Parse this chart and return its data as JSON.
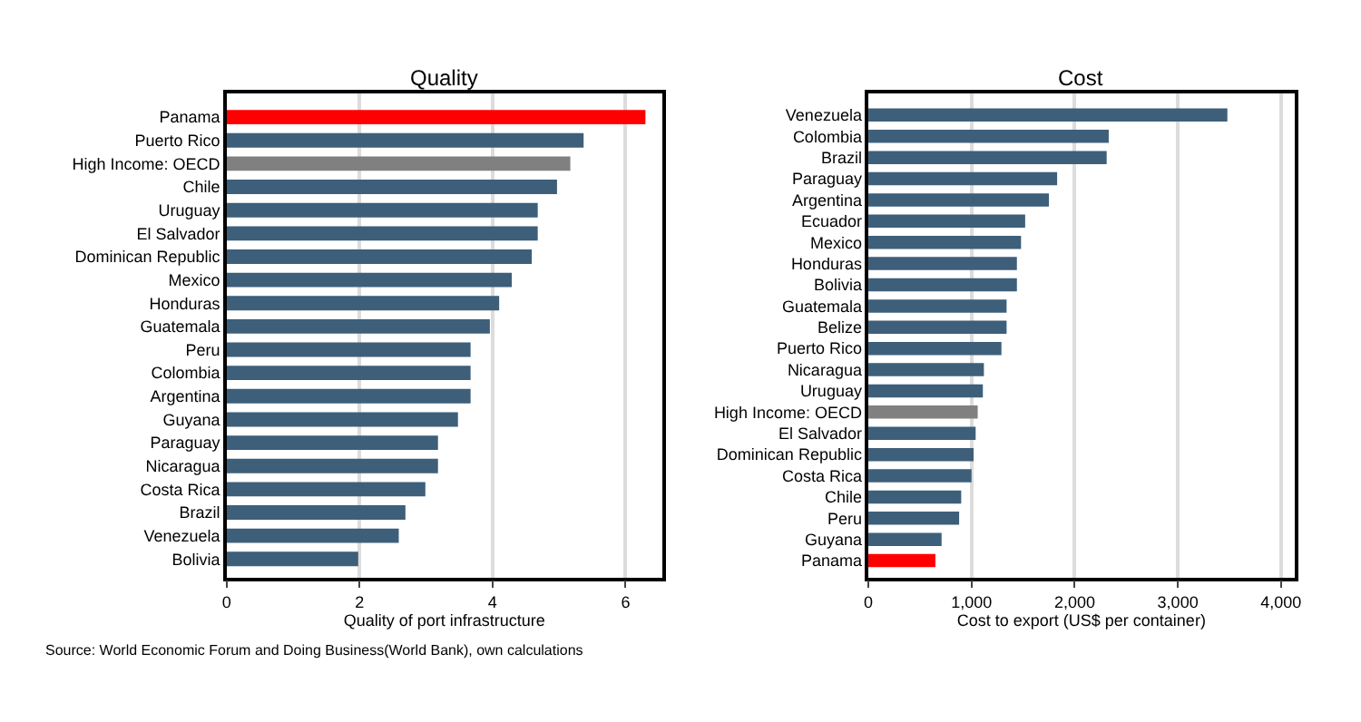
{
  "chart_data": [
    {
      "type": "bar",
      "orientation": "horizontal",
      "title": "Quality",
      "xlabel": "Quality of port infrastructure",
      "categories": [
        "Panama",
        "Puerto Rico",
        "High Income: OECD",
        "Chile",
        "Uruguay",
        "El Salvador",
        "Dominican Republic",
        "Mexico",
        "Honduras",
        "Guatemala",
        "Peru",
        "Colombia",
        "Argentina",
        "Guyana",
        "Paraguay",
        "Nicaragua",
        "Costa Rica",
        "Brazil",
        "Venezuela",
        "Bolivia"
      ],
      "values": [
        6.3,
        5.37,
        5.17,
        4.97,
        4.68,
        4.68,
        4.59,
        4.29,
        4.1,
        3.96,
        3.67,
        3.67,
        3.67,
        3.48,
        3.18,
        3.18,
        2.99,
        2.69,
        2.59,
        1.98
      ],
      "colors": [
        "#ff0000",
        "#3d5f7a",
        "#808080",
        "#3d5f7a",
        "#3d5f7a",
        "#3d5f7a",
        "#3d5f7a",
        "#3d5f7a",
        "#3d5f7a",
        "#3d5f7a",
        "#3d5f7a",
        "#3d5f7a",
        "#3d5f7a",
        "#3d5f7a",
        "#3d5f7a",
        "#3d5f7a",
        "#3d5f7a",
        "#3d5f7a",
        "#3d5f7a",
        "#3d5f7a"
      ],
      "xlim": [
        0,
        6.55
      ],
      "xticks": [
        0,
        2,
        4,
        6
      ],
      "grid": "x",
      "annotations": [
        "Source: World Economic Forum and Doing Business(World Bank), own calculations"
      ]
    },
    {
      "type": "bar",
      "orientation": "horizontal",
      "title": "Cost",
      "xlabel": "Cost to export (US$ per container)",
      "categories": [
        "Venezuela",
        "Colombia",
        "Brazil",
        "Paraguay",
        "Argentina",
        "Ecuador",
        "Mexico",
        "Honduras",
        "Bolivia",
        "Guatemala",
        "Belize",
        "Puerto Rico",
        "Nicaragua",
        "Uruguay",
        "High Income: OECD",
        "El Salvador",
        "Dominican Republic",
        "Costa Rica",
        "Chile",
        "Peru",
        "Guyana",
        "Panama"
      ],
      "values": [
        3480,
        2330,
        2310,
        1830,
        1750,
        1520,
        1480,
        1440,
        1440,
        1340,
        1340,
        1290,
        1120,
        1110,
        1060,
        1040,
        1020,
        1000,
        900,
        880,
        710,
        650
      ],
      "colors": [
        "#3d5f7a",
        "#3d5f7a",
        "#3d5f7a",
        "#3d5f7a",
        "#3d5f7a",
        "#3d5f7a",
        "#3d5f7a",
        "#3d5f7a",
        "#3d5f7a",
        "#3d5f7a",
        "#3d5f7a",
        "#3d5f7a",
        "#3d5f7a",
        "#3d5f7a",
        "#808080",
        "#3d5f7a",
        "#3d5f7a",
        "#3d5f7a",
        "#3d5f7a",
        "#3d5f7a",
        "#3d5f7a",
        "#ff0000"
      ],
      "xlim": [
        0,
        4130
      ],
      "xticks": [
        0,
        {
          "value": 1000,
          "label": "1,000"
        },
        {
          "value": 2000,
          "label": "2,000"
        },
        {
          "value": 3000,
          "label": "3,000"
        },
        {
          "value": 4000,
          "label": "4,000"
        }
      ],
      "grid": "x"
    }
  ]
}
